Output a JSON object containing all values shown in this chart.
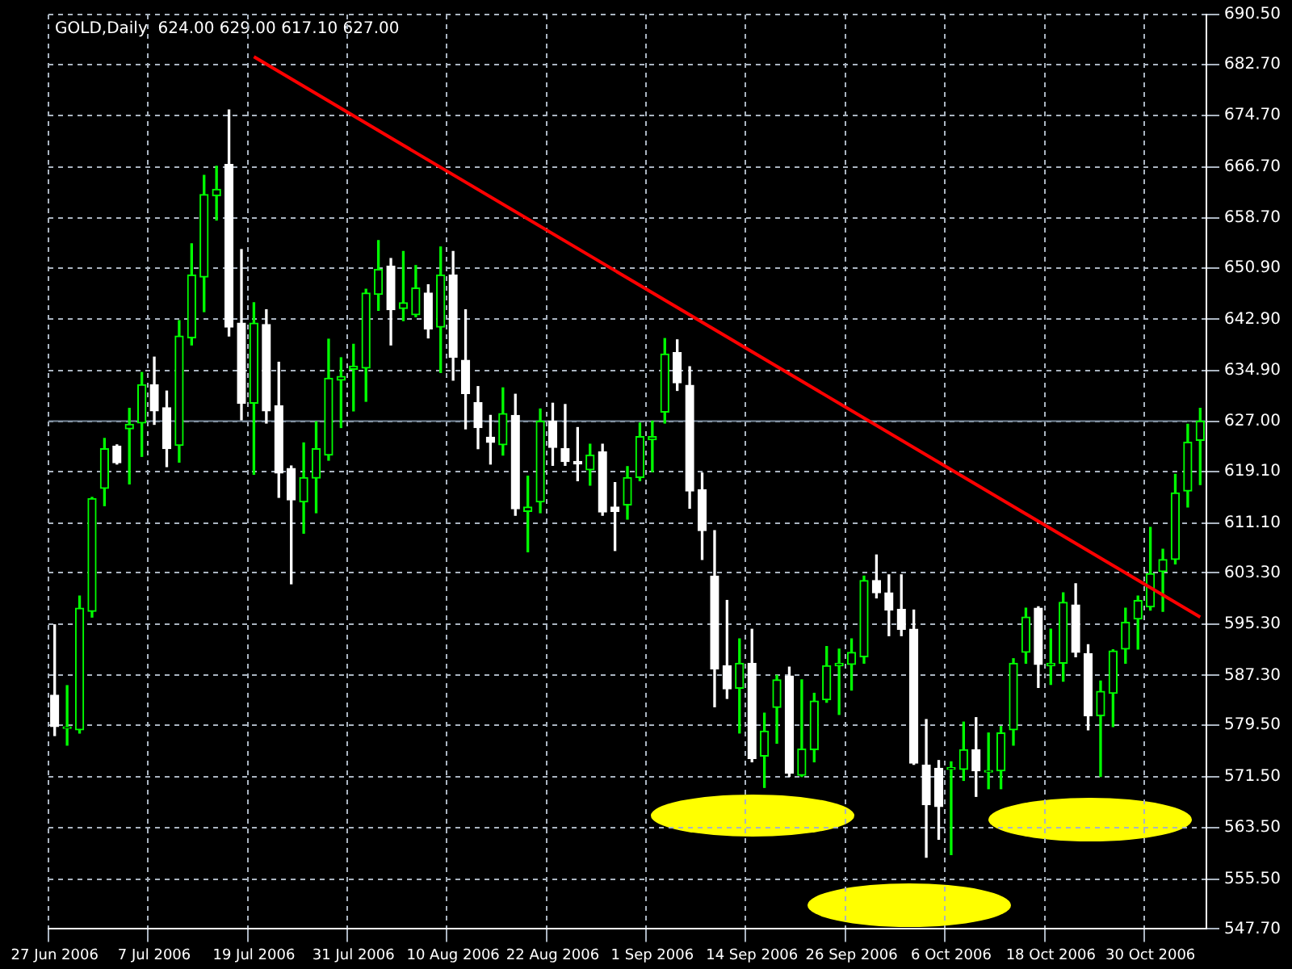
{
  "chart_data": {
    "type": "candlestick",
    "title": "GOLD,Daily  624.00 629.00 617.10 627.00",
    "categories": [
      "27 Jun 2006",
      null,
      null,
      null,
      null,
      null,
      null,
      null,
      "7 Jul 2006",
      null,
      null,
      null,
      null,
      null,
      null,
      null,
      "19 Jul 2006",
      null,
      null,
      null,
      null,
      null,
      null,
      null,
      "31 Jul 2006",
      null,
      null,
      null,
      null,
      null,
      null,
      null,
      "10 Aug 2006",
      null,
      null,
      null,
      null,
      null,
      null,
      null,
      "22 Aug 2006",
      null,
      null,
      null,
      null,
      null,
      null,
      null,
      "1 Sep 2006",
      null,
      null,
      null,
      null,
      null,
      null,
      null,
      "14 Sep 2006",
      null,
      null,
      null,
      null,
      null,
      null,
      null,
      "26 Sep 2006",
      null,
      null,
      null,
      null,
      null,
      null,
      null,
      "6 Oct 2006",
      null,
      null,
      null,
      null,
      null,
      null,
      null,
      "18 Oct 2006",
      null,
      null,
      null,
      null,
      null,
      null,
      null,
      "30 Oct 2006",
      null,
      null,
      null,
      null
    ],
    "ohlc": [
      [
        584.2,
        595.2,
        577.9,
        579.3
      ],
      [
        579.0,
        585.7,
        576.4,
        579.2
      ],
      [
        578.8,
        599.7,
        578.3,
        597.8
      ],
      [
        597.3,
        615.1,
        596.4,
        614.9
      ],
      [
        616.5,
        624.3,
        613.8,
        622.7
      ],
      [
        623.1,
        623.3,
        620.3,
        620.5
      ],
      [
        625.8,
        629.0,
        617.2,
        626.5
      ],
      [
        626.7,
        634.6,
        621.5,
        632.7
      ],
      [
        632.7,
        637.0,
        626.5,
        628.6
      ],
      [
        629.1,
        631.7,
        619.9,
        622.7
      ],
      [
        623.2,
        642.7,
        620.6,
        640.3
      ],
      [
        640.0,
        654.7,
        638.9,
        649.8
      ],
      [
        649.5,
        665.4,
        644.1,
        662.4
      ],
      [
        662.2,
        666.8,
        658.4,
        663.2
      ],
      [
        667.1,
        675.6,
        640.3,
        641.7
      ],
      [
        642.3,
        653.8,
        627.2,
        629.8
      ],
      [
        629.8,
        645.5,
        618.7,
        642.3
      ],
      [
        642.1,
        644.4,
        626.7,
        628.6
      ],
      [
        629.4,
        636.2,
        615.1,
        618.9
      ],
      [
        619.6,
        620.0,
        601.6,
        614.7
      ],
      [
        614.4,
        623.6,
        609.5,
        618.2
      ],
      [
        618.1,
        626.9,
        612.7,
        622.7
      ],
      [
        621.7,
        639.8,
        620.9,
        633.7
      ],
      [
        633.4,
        636.9,
        626.0,
        634.0
      ],
      [
        635.1,
        639.0,
        628.6,
        635.6
      ],
      [
        635.3,
        647.6,
        630.1,
        647.0
      ],
      [
        646.8,
        655.2,
        644.3,
        650.7
      ],
      [
        651.2,
        652.4,
        638.9,
        644.4
      ],
      [
        644.6,
        653.5,
        642.7,
        645.5
      ],
      [
        643.6,
        651.3,
        643.3,
        647.8
      ],
      [
        647.0,
        648.3,
        640.0,
        641.4
      ],
      [
        641.7,
        654.2,
        634.6,
        649.8
      ],
      [
        649.8,
        653.5,
        633.4,
        637.0
      ],
      [
        636.5,
        644.4,
        625.8,
        631.3
      ],
      [
        629.9,
        632.4,
        622.7,
        626.0
      ],
      [
        624.5,
        627.9,
        620.3,
        623.7
      ],
      [
        623.3,
        632.2,
        621.7,
        628.2
      ],
      [
        627.9,
        631.2,
        612.3,
        613.3
      ],
      [
        612.9,
        618.4,
        606.6,
        613.6
      ],
      [
        614.4,
        628.9,
        612.7,
        627.0
      ],
      [
        627.0,
        629.8,
        620.1,
        622.9
      ],
      [
        622.7,
        629.6,
        620.1,
        620.7
      ],
      [
        620.7,
        626.0,
        617.7,
        620.3
      ],
      [
        619.4,
        623.4,
        617.0,
        621.7
      ],
      [
        622.2,
        623.4,
        612.3,
        612.8
      ],
      [
        613.6,
        617.4,
        606.8,
        612.9
      ],
      [
        613.9,
        619.9,
        611.7,
        618.2
      ],
      [
        618.2,
        626.7,
        617.7,
        624.6
      ],
      [
        624.1,
        627.0,
        619.1,
        624.6
      ],
      [
        628.4,
        639.9,
        626.7,
        637.5
      ],
      [
        637.7,
        639.7,
        631.8,
        633.0
      ],
      [
        632.6,
        635.5,
        613.4,
        616.1
      ],
      [
        616.3,
        618.9,
        605.4,
        609.9
      ],
      [
        602.8,
        609.9,
        582.4,
        588.3
      ],
      [
        588.8,
        599.0,
        583.7,
        585.2
      ],
      [
        585.3,
        593.0,
        578.3,
        589.2
      ],
      [
        589.2,
        594.5,
        573.8,
        574.3
      ],
      [
        574.7,
        581.4,
        569.8,
        578.6
      ],
      [
        582.3,
        587.3,
        576.7,
        586.6
      ],
      [
        587.2,
        588.6,
        571.5,
        572.0
      ],
      [
        571.7,
        586.6,
        571.5,
        575.8
      ],
      [
        575.7,
        584.5,
        573.8,
        583.3
      ],
      [
        583.5,
        591.8,
        583.1,
        588.8
      ],
      [
        588.8,
        591.4,
        581.2,
        589.2
      ],
      [
        589.0,
        593.0,
        585.0,
        590.9
      ],
      [
        590.2,
        602.8,
        589.2,
        602.1
      ],
      [
        602.1,
        606.1,
        599.4,
        600.2
      ],
      [
        600.2,
        603.0,
        593.5,
        597.5
      ],
      [
        597.6,
        603.0,
        593.5,
        594.5
      ],
      [
        594.5,
        597.5,
        573.4,
        573.6
      ],
      [
        573.3,
        580.4,
        558.9,
        567.1
      ],
      [
        572.8,
        574.0,
        561.7,
        566.8
      ],
      [
        572.6,
        573.8,
        559.3,
        572.9
      ],
      [
        572.6,
        580.0,
        570.9,
        575.7
      ],
      [
        575.7,
        580.7,
        568.4,
        572.4
      ],
      [
        572.2,
        578.3,
        569.6,
        572.4
      ],
      [
        572.4,
        579.3,
        569.6,
        578.3
      ],
      [
        578.8,
        589.9,
        576.4,
        589.2
      ],
      [
        590.9,
        597.8,
        589.2,
        596.4
      ],
      [
        597.8,
        598.0,
        585.4,
        589.0
      ],
      [
        588.8,
        594.5,
        585.9,
        589.2
      ],
      [
        589.2,
        600.2,
        586.4,
        598.7
      ],
      [
        598.3,
        601.6,
        590.2,
        590.9
      ],
      [
        590.7,
        592.1,
        578.8,
        581.0
      ],
      [
        581.0,
        586.4,
        571.5,
        584.8
      ],
      [
        584.5,
        591.3,
        579.3,
        591.1
      ],
      [
        591.4,
        597.8,
        589.2,
        595.6
      ],
      [
        596.1,
        599.7,
        591.4,
        599.0
      ],
      [
        598.0,
        610.4,
        597.5,
        603.2
      ],
      [
        603.5,
        607.0,
        597.3,
        605.4
      ],
      [
        605.4,
        618.7,
        604.7,
        615.8
      ],
      [
        616.1,
        626.5,
        613.6,
        623.7
      ],
      [
        624.0,
        629.0,
        617.1,
        627.0
      ]
    ],
    "series": [
      {
        "type": "line",
        "color": "#ff0000",
        "values": [
          null,
          null,
          null,
          null,
          null,
          null,
          null,
          null,
          null,
          null,
          null,
          null,
          null,
          null,
          null,
          null,
          683.9,
          null,
          null,
          null,
          null,
          null,
          null,
          null,
          null,
          null,
          null,
          null,
          null,
          null,
          null,
          null,
          null,
          null,
          null,
          null,
          null,
          null,
          null,
          null,
          null,
          null,
          null,
          null,
          null,
          null,
          null,
          null,
          null,
          null,
          null,
          null,
          null,
          null,
          null,
          null,
          null,
          null,
          null,
          null,
          null,
          null,
          null,
          null,
          null,
          null,
          null,
          null,
          null,
          null,
          null,
          null,
          null,
          null,
          null,
          null,
          null,
          null,
          null,
          null,
          null,
          null,
          null,
          null,
          null,
          null,
          null,
          null,
          null,
          null,
          null,
          null,
          596.4
        ]
      }
    ],
    "ylim": [
      547.7,
      690.5
    ],
    "yticks": [
      {
        "value": 547.7,
        "label": "547.70"
      },
      {
        "value": 555.5,
        "label": "555.50"
      },
      {
        "value": 563.5,
        "label": "563.50"
      },
      {
        "value": 571.5,
        "label": "571.50"
      },
      {
        "value": 579.5,
        "label": "579.50"
      },
      {
        "value": 587.3,
        "label": "587.30"
      },
      {
        "value": 595.3,
        "label": "595.30"
      },
      {
        "value": 603.3,
        "label": "603.30"
      },
      {
        "value": 611.1,
        "label": "611.10"
      },
      {
        "value": 619.1,
        "label": "619.10"
      },
      {
        "value": 627,
        "label": "627.00"
      },
      {
        "value": 634.9,
        "label": "634.90"
      },
      {
        "value": 642.9,
        "label": "642.90"
      },
      {
        "value": 650.9,
        "label": "650.90"
      },
      {
        "value": 658.7,
        "label": "658.70"
      },
      {
        "value": 666.7,
        "label": "666.70"
      },
      {
        "value": 674.7,
        "label": "674.70"
      },
      {
        "value": 682.7,
        "label": "682.70"
      },
      {
        "value": 690.5,
        "label": "690.50"
      }
    ],
    "ref_lines": [
      {
        "axis": "y",
        "value": 627,
        "color": "#778899"
      }
    ],
    "grid": true,
    "legend": false
  }
}
